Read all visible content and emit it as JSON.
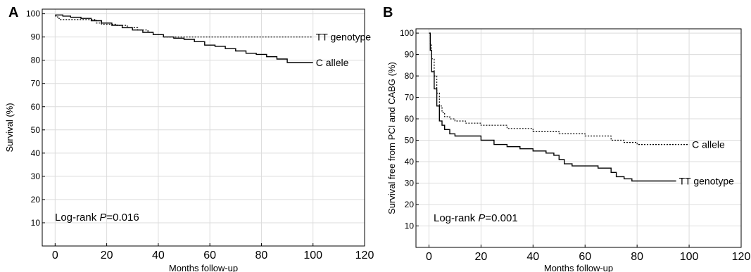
{
  "chart_data": [
    {
      "type": "line",
      "panel_label": "A",
      "xlabel": "Months follow-up",
      "ylabel": "Survival (%)",
      "xlim": [
        -5,
        120
      ],
      "ylim": [
        0,
        102
      ],
      "xticks": [
        0,
        20,
        40,
        60,
        80,
        100,
        120
      ],
      "yticks": [
        10,
        20,
        30,
        40,
        50,
        60,
        70,
        80,
        90,
        100
      ],
      "grid": true,
      "annotation": {
        "text": "Log-rank ",
        "italic": "P",
        "value": "=0.016"
      },
      "series": [
        {
          "name": "TT genotype",
          "style": "dotted",
          "x": [
            0,
            1,
            2,
            4,
            8,
            12,
            16,
            18,
            20,
            24,
            28,
            32,
            36,
            38,
            42,
            46,
            50,
            60,
            70,
            80,
            90,
            100
          ],
          "y": [
            99,
            98,
            97.5,
            97.5,
            97.5,
            97.5,
            96,
            95.5,
            95.5,
            95,
            94,
            93,
            92,
            91,
            90,
            90,
            90,
            90,
            90,
            90,
            90,
            90
          ]
        },
        {
          "name": "C allele",
          "style": "solid",
          "x": [
            0,
            3,
            6,
            10,
            14,
            18,
            22,
            26,
            30,
            34,
            38,
            42,
            46,
            50,
            54,
            58,
            62,
            66,
            70,
            74,
            78,
            82,
            86,
            90,
            94,
            100
          ],
          "y": [
            99.5,
            99,
            98.5,
            98,
            97,
            96,
            95,
            94,
            93,
            92,
            91,
            90,
            89.5,
            89,
            88,
            86.5,
            86,
            85,
            84,
            83,
            82.5,
            81.5,
            80.5,
            79,
            79,
            79
          ]
        }
      ]
    },
    {
      "type": "line",
      "panel_label": "B",
      "xlabel": "Months follow-up",
      "ylabel": "Survival free from PCI and CABG (%)",
      "xlim": [
        -5,
        120
      ],
      "ylim": [
        0,
        102
      ],
      "xticks": [
        0,
        20,
        40,
        60,
        80,
        100,
        120
      ],
      "yticks": [
        10,
        20,
        30,
        40,
        50,
        60,
        70,
        80,
        90,
        100
      ],
      "grid": true,
      "annotation": {
        "text": "Log-rank ",
        "italic": "P",
        "value": "=0.001"
      },
      "series": [
        {
          "name": "C allele",
          "style": "dotted",
          "x": [
            0,
            0.5,
            1,
            2,
            3,
            4,
            5,
            6,
            8,
            10,
            14,
            20,
            30,
            40,
            50,
            60,
            70,
            75,
            80,
            90,
            100
          ],
          "y": [
            100,
            95,
            88,
            80,
            72,
            66,
            63,
            61,
            60,
            59,
            58,
            57,
            55.5,
            54,
            53,
            52,
            50,
            49,
            48,
            48,
            48
          ]
        },
        {
          "name": "TT genotype",
          "style": "solid",
          "x": [
            0,
            0.5,
            1,
            2,
            3,
            4,
            5,
            6,
            8,
            10,
            15,
            20,
            25,
            30,
            35,
            40,
            45,
            48,
            50,
            52,
            55,
            60,
            65,
            70,
            72,
            75,
            78,
            85,
            95
          ],
          "y": [
            100,
            92,
            82,
            74,
            66,
            59,
            57,
            55,
            53,
            52,
            52,
            50,
            48,
            47,
            46,
            45,
            44,
            43,
            41,
            39,
            38,
            38,
            37,
            35,
            33,
            32,
            31,
            31,
            31
          ]
        }
      ]
    }
  ]
}
